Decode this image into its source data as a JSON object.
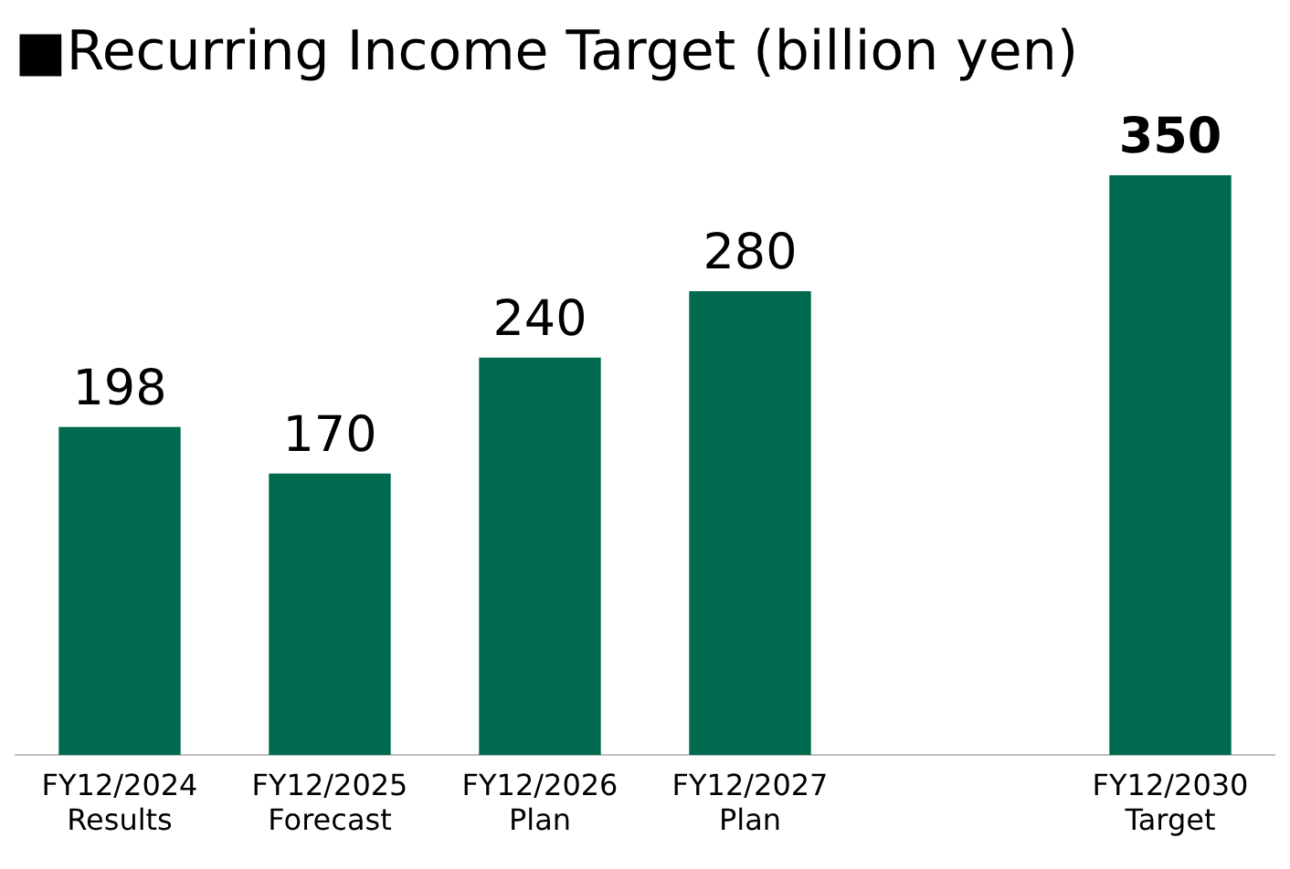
{
  "chart_data": {
    "type": "bar",
    "title": "■Recurring Income Target (billion yen)",
    "categories": [
      "FY12/2024\nResults",
      "FY12/2025\nForecast",
      "FY12/2026\nPlan",
      "FY12/2027\nPlan",
      null,
      "FY12/2030\nTarget"
    ],
    "values": [
      198,
      170,
      240,
      280,
      null,
      350
    ],
    "color": "#006a4e",
    "data_labels": true,
    "grid": false,
    "legend": false,
    "tick_labels": "x"
  }
}
